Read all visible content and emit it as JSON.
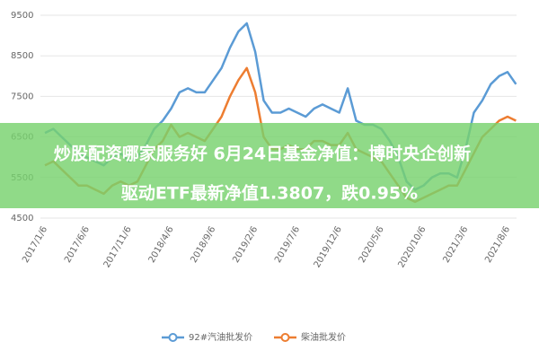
{
  "chart_data": {
    "type": "line",
    "categories": [
      "2017/1/6",
      null,
      null,
      null,
      null,
      "2017/6/6",
      null,
      null,
      null,
      null,
      "2017/11/6",
      null,
      null,
      null,
      null,
      "2018/4/6",
      null,
      null,
      null,
      null,
      "2018/9/6",
      null,
      null,
      null,
      null,
      "2019/2/6",
      null,
      null,
      null,
      null,
      "2019/7/6",
      null,
      null,
      null,
      null,
      "2019/12/6",
      null,
      null,
      null,
      null,
      "2020/5/6",
      null,
      null,
      null,
      null,
      "2020/10/6",
      null,
      null,
      null,
      null,
      "2021/3/6",
      null,
      null,
      null,
      null,
      "2021/8/6",
      null
    ],
    "series": [
      {
        "name": "92#汽油批发价",
        "color": "#5b9bd5",
        "values": [
          6600,
          6700,
          6500,
          6300,
          6100,
          6000,
          5900,
          5800,
          6000,
          6100,
          5900,
          6000,
          6300,
          6700,
          6900,
          7200,
          7600,
          7700,
          7600,
          7600,
          7900,
          8200,
          8700,
          9100,
          9300,
          8600,
          7400,
          7100,
          7100,
          7200,
          7100,
          7000,
          7200,
          7300,
          7200,
          7100,
          7700,
          6900,
          6800,
          6800,
          6700,
          6400,
          6000,
          5400,
          5200,
          5300,
          5500,
          5600,
          5600,
          5500,
          6200,
          7100,
          7400,
          7800,
          8000,
          8100,
          7800
        ]
      },
      {
        "name": "柴油批发价",
        "color": "#ed7d31",
        "values": [
          5800,
          5900,
          5700,
          5500,
          5300,
          5300,
          5200,
          5100,
          5300,
          5400,
          5300,
          5400,
          5800,
          6200,
          6400,
          6800,
          6500,
          6600,
          6500,
          6400,
          6700,
          7000,
          7500,
          7900,
          8200,
          7600,
          6500,
          6200,
          6200,
          6300,
          6200,
          6200,
          6400,
          6400,
          6300,
          6300,
          6600,
          6200,
          6100,
          6000,
          5900,
          5600,
          5300,
          5000,
          4900,
          5000,
          5100,
          5200,
          5300,
          5300,
          5700,
          6100,
          6500,
          6700,
          6900,
          7000,
          6900
        ]
      }
    ],
    "ylim": [
      4500,
      9500
    ],
    "yticks": [
      4500,
      5500,
      6500,
      7500,
      8500,
      9500
    ],
    "grid": true,
    "legend": "bottom",
    "overlay": [
      "炒股配资哪家服务好 6月24日基金净值：博时央企创新",
      "驱动ETF最新净值1.3807，跌0.95%"
    ]
  }
}
